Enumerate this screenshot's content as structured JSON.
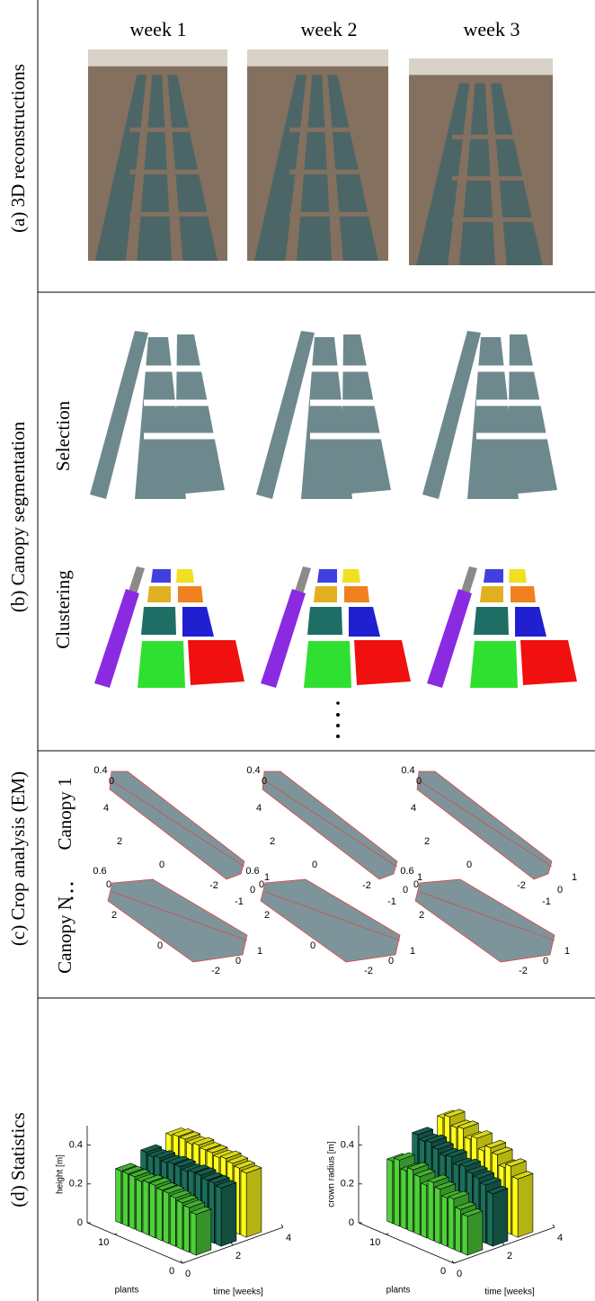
{
  "week_labels": [
    "week 1",
    "week 2",
    "week 3"
  ],
  "reconstructions": {
    "label": "(a) 3D reconstructions"
  },
  "segmentation": {
    "label": "(b) Canopy segmentation",
    "rows": [
      "Selection",
      "Clustering"
    ]
  },
  "crop_analysis": {
    "label": "(c) Crop analysis (EM)",
    "rows": [
      "Canopy 1",
      "Canopy N"
    ],
    "panels": [
      [
        [
          0.4,
          0,
          4,
          2,
          0,
          -2,
          -1,
          0,
          1
        ],
        [
          0.4,
          0,
          4,
          2,
          0,
          -2,
          -1,
          0,
          1
        ],
        [
          0.4,
          0,
          4,
          2,
          0,
          -2,
          -1,
          0,
          1
        ]
      ],
      [
        [
          0.6,
          0,
          2,
          0,
          -2,
          0,
          1
        ],
        [
          0.6,
          0,
          2,
          0,
          -2,
          0,
          1
        ],
        [
          0.6,
          0,
          2,
          -2,
          0,
          1
        ]
      ]
    ]
  },
  "statistics": {
    "label": "(d) Statistics"
  },
  "chart_data": [
    {
      "type": "bar3d",
      "ylabel": "height [m]",
      "ylim": [
        0,
        0.5
      ],
      "yticks": [
        0,
        0.2,
        0.4
      ],
      "plant_label": "plants",
      "plant_lim": [
        0,
        14
      ],
      "plant_ticks": [
        0,
        10
      ],
      "time_label": "time [weeks]",
      "time_lim": [
        0,
        4
      ],
      "time_ticks": [
        0,
        2,
        4
      ],
      "plants": [
        1,
        2,
        3,
        4,
        5,
        6,
        7,
        8,
        9,
        10,
        11,
        12
      ],
      "series": [
        {
          "time": 1,
          "color": "#4fd13a",
          "values": [
            0.21,
            0.23,
            0.24,
            0.25,
            0.26,
            0.26,
            0.27,
            0.27,
            0.26,
            0.27,
            0.27,
            0.27
          ]
        },
        {
          "time": 2,
          "color": "#1b6e5a",
          "values": [
            0.3,
            0.31,
            0.31,
            0.32,
            0.32,
            0.31,
            0.32,
            0.32,
            0.31,
            0.32,
            0.31,
            0.32
          ]
        },
        {
          "time": 3,
          "color": "#ffff1a",
          "values": [
            0.33,
            0.34,
            0.35,
            0.36,
            0.35,
            0.36,
            0.36,
            0.37,
            0.36,
            0.37,
            0.37,
            0.36
          ]
        }
      ]
    },
    {
      "type": "bar3d",
      "ylabel": "crown radius [m]",
      "ylim": [
        0,
        0.5
      ],
      "yticks": [
        0,
        0.2,
        0.4
      ],
      "plant_label": "plants",
      "plant_lim": [
        0,
        14
      ],
      "plant_ticks": [
        0,
        10
      ],
      "time_label": "time [weeks]",
      "time_lim": [
        0,
        4
      ],
      "time_ticks": [
        0,
        2,
        4
      ],
      "plants": [
        1,
        2,
        3,
        4,
        5,
        6,
        7,
        8,
        9,
        10,
        11,
        12
      ],
      "series": [
        {
          "time": 1,
          "color": "#4fd13a",
          "values": [
            0.2,
            0.22,
            0.26,
            0.25,
            0.28,
            0.3,
            0.27,
            0.3,
            0.32,
            0.3,
            0.34,
            0.32
          ]
        },
        {
          "time": 2,
          "color": "#1b6e5a",
          "values": [
            0.27,
            0.3,
            0.32,
            0.33,
            0.35,
            0.34,
            0.37,
            0.36,
            0.38,
            0.4,
            0.39,
            0.41
          ]
        },
        {
          "time": 3,
          "color": "#ffff1a",
          "values": [
            0.3,
            0.35,
            0.33,
            0.38,
            0.4,
            0.37,
            0.42,
            0.4,
            0.44,
            0.43,
            0.47,
            0.45
          ]
        }
      ]
    }
  ]
}
